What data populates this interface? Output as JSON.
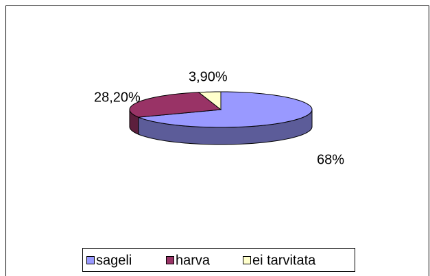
{
  "chart_data": {
    "type": "pie",
    "categories": [
      "sageli",
      "harva",
      "ei tarvitata"
    ],
    "values": [
      68,
      28.2,
      3.9
    ],
    "value_labels": [
      "68%",
      "28,20%",
      "3,90%"
    ],
    "colors": [
      "#9999ff",
      "#993366",
      "#ffffcc"
    ],
    "legend": "bottom"
  }
}
